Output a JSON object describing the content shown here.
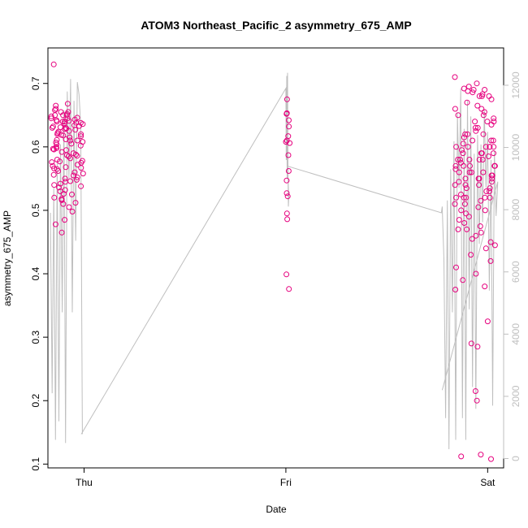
{
  "chart_data": {
    "type": "scatter",
    "title": "ATOM3 Northeast_Pacific_2 asymmetry_675_AMP",
    "xlabel": "Date",
    "ylabel": "asymmetry_675_AMP",
    "x_tick_labels": [
      "Thu",
      "Fri",
      "Sat"
    ],
    "x_tick_values": [
      0,
      24,
      48
    ],
    "xlim": [
      -4.3,
      49.9
    ],
    "ylim": [
      0.094,
      0.756
    ],
    "y_ticks": [
      0.1,
      0.2,
      0.3,
      0.4,
      0.5,
      0.6,
      0.7
    ],
    "y2lim": [
      -300,
      13200
    ],
    "y2_ticks": [
      0,
      2000,
      4000,
      6000,
      8000,
      10000,
      12000
    ],
    "grid": false,
    "colors": {
      "points": "#e6007e",
      "secondary_line": "#bfbfbf",
      "axes": "#000000",
      "right_axis": "#bfbfbf"
    },
    "series": [
      {
        "marker": "open-circle",
        "axis": "left",
        "clusters": [
          {
            "x_center": -2.0,
            "x_spread": 1.9,
            "y": [
              0.645,
              0.638,
              0.632,
              0.625,
              0.618,
              0.612,
              0.605,
              0.598,
              0.592,
              0.585,
              0.578,
              0.572,
              0.565,
              0.558,
              0.552,
              0.545,
              0.538,
              0.532,
              0.525,
              0.518,
              0.512,
              0.505,
              0.498,
              0.485,
              0.478,
              0.465,
              0.652,
              0.648,
              0.642,
              0.64,
              0.636,
              0.634,
              0.631,
              0.628,
              0.622,
              0.615,
              0.608,
              0.602,
              0.595,
              0.588,
              0.582,
              0.575,
              0.568,
              0.562,
              0.555,
              0.548,
              0.542,
              0.668,
              0.665,
              0.658,
              0.655,
              0.65,
              0.646,
              0.641,
              0.637,
              0.633,
              0.629,
              0.624,
              0.619,
              0.611,
              0.604,
              0.596,
              0.586,
              0.576,
              0.566,
              0.556,
              0.546,
              0.536,
              0.526,
              0.516,
              0.65,
              0.645,
              0.64,
              0.63,
              0.62,
              0.61,
              0.6,
              0.59,
              0.58,
              0.57,
              0.56,
              0.55,
              0.54,
              0.53,
              0.52,
              0.51,
              0.65,
              0.64,
              0.63,
              0.62,
              0.61,
              0.66,
              0.655,
              0.643,
              0.638,
              0.627,
              0.617,
              0.607,
              0.597,
              0.587,
              0.577,
              0.567,
              0.73
            ]
          },
          {
            "x_center": 24.2,
            "x_spread": 0.25,
            "y": [
              0.675,
              0.653,
              0.642,
              0.632,
              0.617,
              0.61,
              0.608,
              0.606,
              0.587,
              0.562,
              0.547,
              0.527,
              0.522,
              0.495,
              0.486,
              0.399,
              0.376,
              0.652
            ]
          },
          {
            "x_center": 46.5,
            "x_spread": 2.4,
            "y": [
              0.71,
              0.7,
              0.695,
              0.692,
              0.69,
              0.688,
              0.686,
              0.683,
              0.68,
              0.675,
              0.67,
              0.665,
              0.66,
              0.655,
              0.65,
              0.645,
              0.64,
              0.635,
              0.63,
              0.625,
              0.62,
              0.615,
              0.61,
              0.605,
              0.6,
              0.595,
              0.59,
              0.585,
              0.58,
              0.575,
              0.57,
              0.565,
              0.56,
              0.555,
              0.55,
              0.545,
              0.54,
              0.535,
              0.53,
              0.525,
              0.52,
              0.515,
              0.51,
              0.505,
              0.5,
              0.495,
              0.49,
              0.485,
              0.48,
              0.475,
              0.47,
              0.465,
              0.46,
              0.455,
              0.45,
              0.445,
              0.44,
              0.43,
              0.42,
              0.41,
              0.4,
              0.39,
              0.38,
              0.375,
              0.325,
              0.29,
              0.285,
              0.215,
              0.2,
              0.115,
              0.112,
              0.108,
              0.69,
              0.68,
              0.66,
              0.64,
              0.62,
              0.6,
              0.58,
              0.56,
              0.54,
              0.52,
              0.5,
              0.6,
              0.59,
              0.58,
              0.57,
              0.56,
              0.55,
              0.62,
              0.63,
              0.61,
              0.6,
              0.58,
              0.57,
              0.555,
              0.545,
              0.535,
              0.64,
              0.65,
              0.61,
              0.59,
              0.57,
              0.55,
              0.53,
              0.51,
              0.6,
              0.58,
              0.56,
              0.54,
              0.52,
              0.6,
              0.59,
              0.57,
              0.55,
              0.47,
              0.52,
              0.52,
              0.68
            ]
          }
        ]
      },
      {
        "marker": "line",
        "axis": "right",
        "x": [
          -4.0,
          -3.8,
          -3.6,
          -3.4,
          -3.2,
          -3.0,
          -2.8,
          -2.6,
          -2.4,
          -2.2,
          -2.0,
          -1.8,
          -1.6,
          -1.4,
          -1.2,
          -1.0,
          -0.8,
          -0.6,
          -0.4,
          -0.2,
          -0.3,
          24.0,
          24.05,
          24.1,
          24.15,
          24.2,
          24.25,
          24.3,
          24.35,
          24.2,
          42.5,
          42.6,
          42.8,
          43.0,
          43.2,
          43.4,
          43.6,
          43.8,
          44.0,
          44.2,
          44.4,
          44.6,
          44.8,
          45.0,
          45.2,
          45.4,
          45.6,
          45.8,
          46.0,
          46.2,
          46.4,
          46.6,
          46.8,
          47.0,
          47.2,
          47.4,
          47.6,
          47.8,
          48.0,
          48.2,
          48.4,
          48.6,
          48.8,
          49.0,
          49.2,
          42.6
        ],
        "y": [
          7900,
          2100,
          8700,
          600,
          9500,
          1200,
          10100,
          4700,
          11200,
          500,
          11800,
          9000,
          12200,
          4700,
          11500,
          7000,
          12100,
          11700,
          10700,
          800,
          800,
          11900,
          9600,
          12300,
          9000,
          12400,
          9400,
          8100,
          8400,
          9400,
          7900,
          8100,
          6400,
          1300,
          8300,
          300,
          9300,
          4700,
          10200,
          600,
          11100,
          8700,
          11900,
          1300,
          10600,
          600,
          11500,
          4800,
          11000,
          2300,
          9800,
          1600,
          10400,
          6900,
          10100,
          7600,
          11200,
          8700,
          10500,
          5400,
          9600,
          1700,
          9900,
          7800,
          8900,
          2200
        ]
      }
    ]
  }
}
